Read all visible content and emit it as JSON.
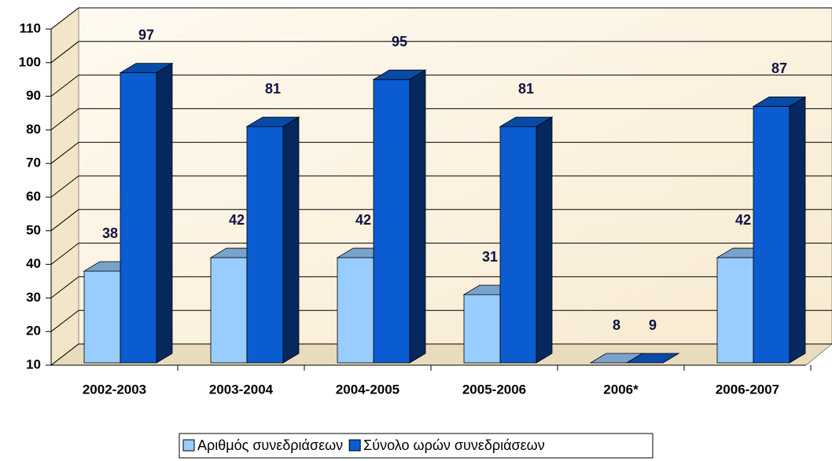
{
  "chart_data": {
    "type": "bar3d",
    "categories": [
      "2002-2003",
      "2003-2004",
      "2004-2005",
      "2005-2006",
      "2006*",
      "2006-2007"
    ],
    "series": [
      {
        "name": "Αριθμός συνεδριάσεων",
        "color": "#99ccff",
        "values": [
          38,
          42,
          42,
          31,
          8,
          42
        ]
      },
      {
        "name": "Σύνολο ωρών συνεδριάσεων",
        "color": "#0a5cd0",
        "values": [
          97,
          81,
          95,
          81,
          9,
          87
        ]
      }
    ],
    "ylim": [
      10,
      110
    ],
    "yticks": [
      10,
      20,
      30,
      40,
      50,
      60,
      70,
      80,
      90,
      100,
      110
    ],
    "grid": true,
    "legend": "bottom"
  }
}
